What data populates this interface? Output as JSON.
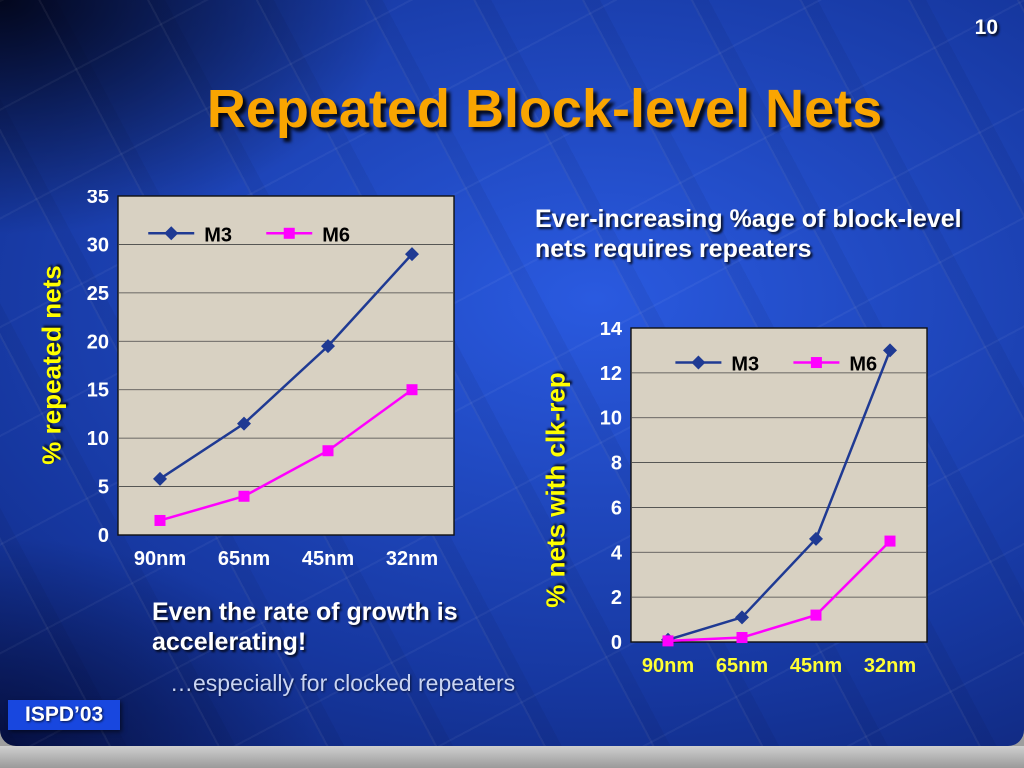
{
  "page": {
    "number": "10"
  },
  "slide": {
    "title": "Repeated Block-level Nets",
    "callout_right": "Ever-increasing %age of block-level nets requires repeaters",
    "callout_left": "Even the rate of growth is accelerating!",
    "footnote": "…especially for clocked repeaters",
    "footer_badge": "ISPD’03"
  },
  "colors": {
    "title": "#f9a501",
    "axis_title": "#ffff00",
    "background_blue": "#16379f",
    "badge_blue": "#1847df",
    "m3_series": "#1f3a93",
    "m6_series": "#ff00ff",
    "plot_background": "#d8d1c2"
  },
  "chart_data": [
    {
      "type": "line",
      "categories": [
        "90nm",
        "65nm",
        "45nm",
        "32nm"
      ],
      "series": [
        {
          "name": "M3",
          "values": [
            5.8,
            11.5,
            19.5,
            29
          ],
          "color": "#1f3a93",
          "marker": "diamond"
        },
        {
          "name": "M6",
          "values": [
            1.5,
            4,
            8.7,
            15
          ],
          "color": "#ff00ff",
          "marker": "square"
        }
      ],
      "ylabel": "% repeated nets",
      "xlabel": "",
      "ylim": [
        0,
        35
      ],
      "ytick": 5,
      "grid": true,
      "legend_position": "top-left-inside",
      "legend_x": 0.09,
      "legend_y": 0.11,
      "plot_bg": "#d8d1c2",
      "ytick_color": "#ffffff",
      "xtick_color": "#ffffff"
    },
    {
      "type": "line",
      "categories": [
        "90nm",
        "65nm",
        "45nm",
        "32nm"
      ],
      "series": [
        {
          "name": "M3",
          "values": [
            0.1,
            1.1,
            4.6,
            13
          ],
          "color": "#1f3a93",
          "marker": "diamond"
        },
        {
          "name": "M6",
          "values": [
            0.05,
            0.2,
            1.2,
            4.5
          ],
          "color": "#ff00ff",
          "marker": "square"
        }
      ],
      "ylabel": "% nets with clk-rep",
      "xlabel": "",
      "ylim": [
        0,
        14
      ],
      "ytick": 2,
      "grid": true,
      "legend_position": "top-left-inside",
      "legend_x": 0.15,
      "legend_y": 0.11,
      "plot_bg": "#d8d1c2",
      "ytick_color": "#ffffff",
      "xtick_color": "#ffff33"
    }
  ]
}
